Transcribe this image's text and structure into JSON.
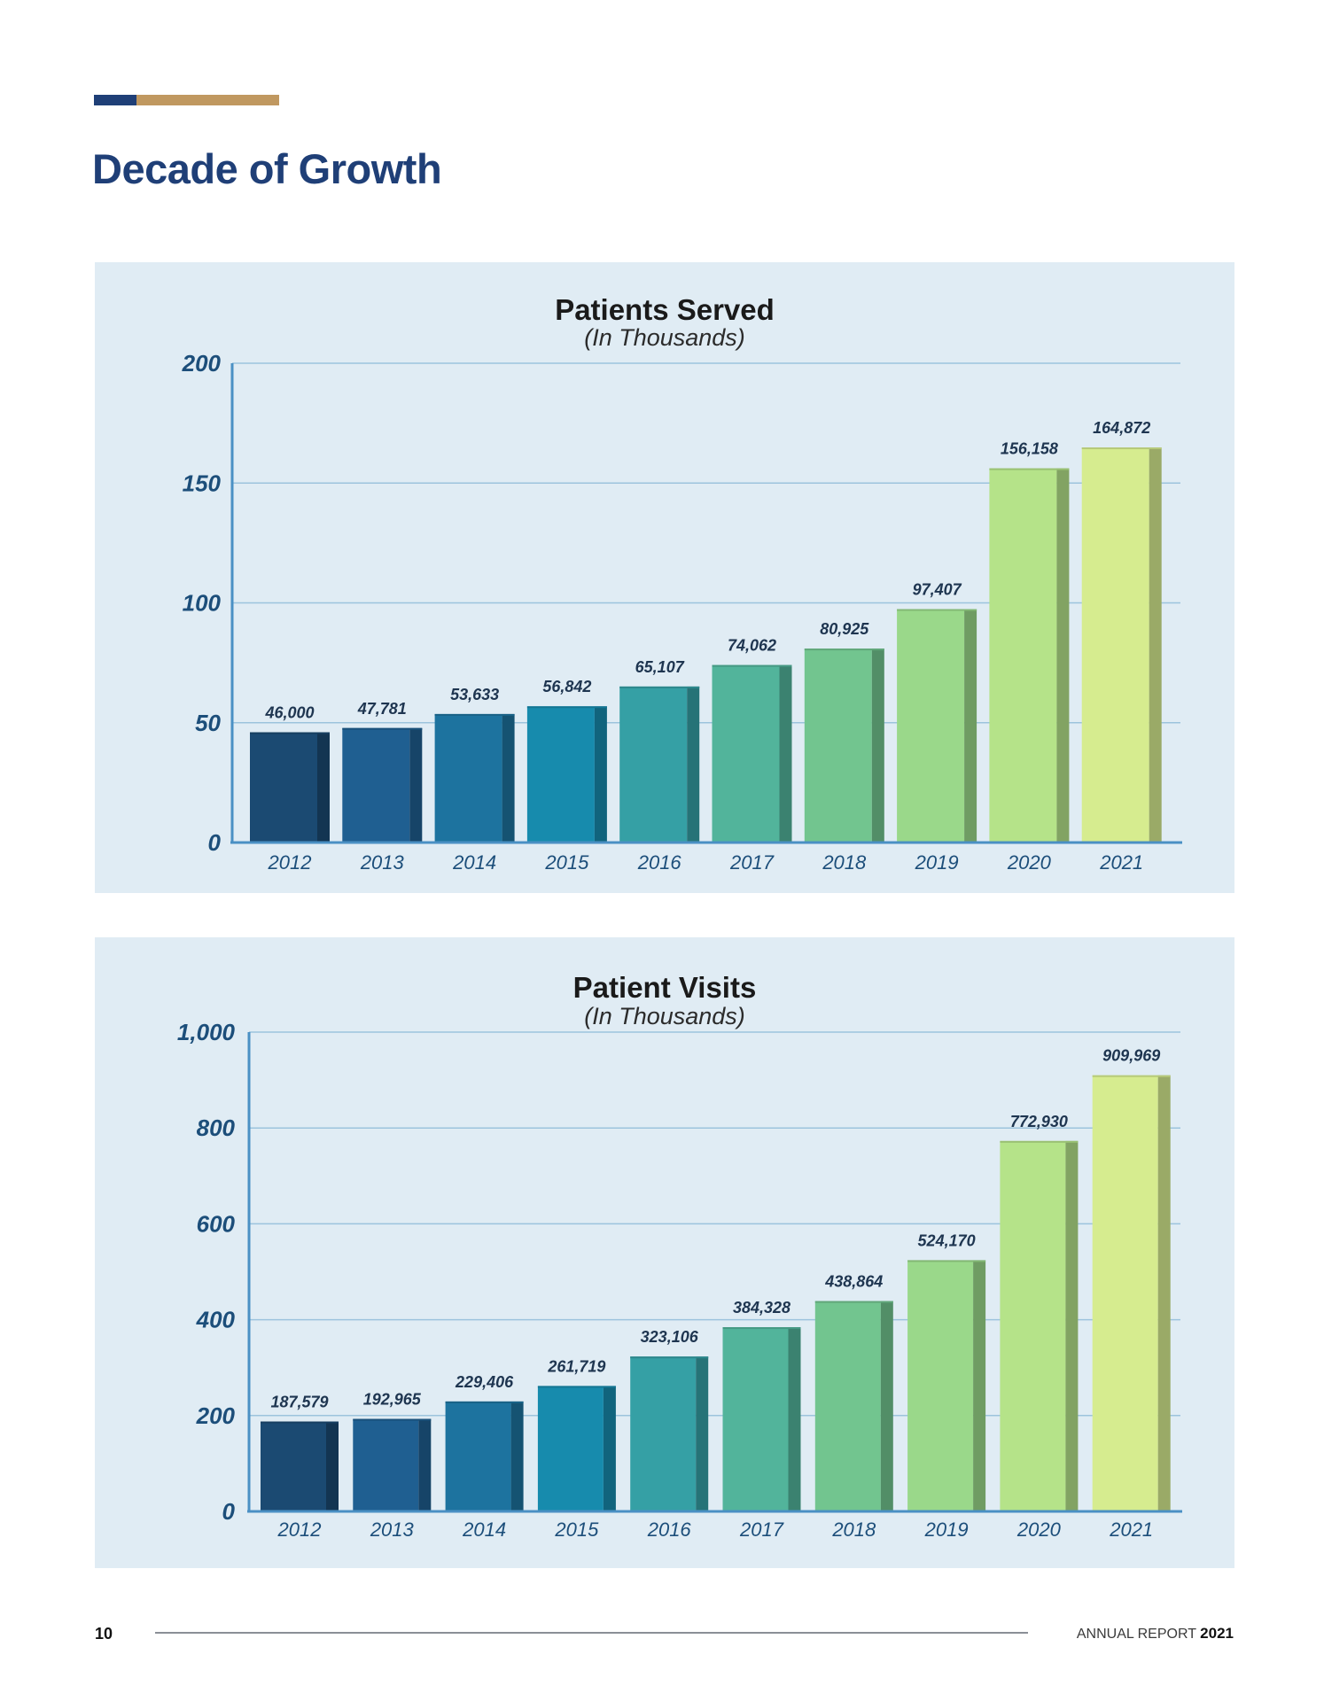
{
  "header": {
    "title": "Decade of Growth",
    "accent_colors": [
      "#1f3f77",
      "#c09860"
    ]
  },
  "chart_data": [
    {
      "type": "bar",
      "title": "Patients Served",
      "subtitle": "(In Thousands)",
      "categories": [
        "2012",
        "2013",
        "2014",
        "2015",
        "2016",
        "2017",
        "2018",
        "2019",
        "2020",
        "2021"
      ],
      "values": [
        46.0,
        47.781,
        53.633,
        56.842,
        65.107,
        74.062,
        80.925,
        97.407,
        156.158,
        164.872
      ],
      "data_labels": [
        "46,000",
        "47,781",
        "53,633",
        "56,842",
        "65,107",
        "74,062",
        "80,925",
        "97,407",
        "156,158",
        "164,872"
      ],
      "yticks": [
        "0",
        "50",
        "100",
        "150",
        "200"
      ],
      "ytick_values": [
        0,
        50,
        100,
        150,
        200
      ],
      "ylim": [
        0,
        200
      ],
      "grid": true,
      "colors": [
        "#1b4a72",
        "#1f5f91",
        "#1d739f",
        "#178bad",
        "#35a0a5",
        "#52b49b",
        "#72c58f",
        "#9ad88a",
        "#b5e389",
        "#d6ec8f"
      ]
    },
    {
      "type": "bar",
      "title": "Patient Visits",
      "subtitle": "(In Thousands)",
      "categories": [
        "2012",
        "2013",
        "2014",
        "2015",
        "2016",
        "2017",
        "2018",
        "2019",
        "2020",
        "2021"
      ],
      "values": [
        187.579,
        192.965,
        229.406,
        261.719,
        323.106,
        384.328,
        438.864,
        524.17,
        772.93,
        909.969
      ],
      "data_labels": [
        "187,579",
        "192,965",
        "229,406",
        "261,719",
        "323,106",
        "384,328",
        "438,864",
        "524,170",
        "772,930",
        "909,969"
      ],
      "yticks": [
        "0",
        "200",
        "400",
        "600",
        "800",
        "1,000"
      ],
      "ytick_values": [
        0,
        200,
        400,
        600,
        800,
        1000
      ],
      "ylim": [
        0,
        1000
      ],
      "grid": true,
      "colors": [
        "#1b4a72",
        "#1f5f91",
        "#1d739f",
        "#178bad",
        "#35a0a5",
        "#52b49b",
        "#72c58f",
        "#9ad88a",
        "#b5e389",
        "#d6ec8f"
      ]
    }
  ],
  "footer": {
    "page_number": "10",
    "report_label": "ANNUAL REPORT",
    "report_year": "2021"
  }
}
